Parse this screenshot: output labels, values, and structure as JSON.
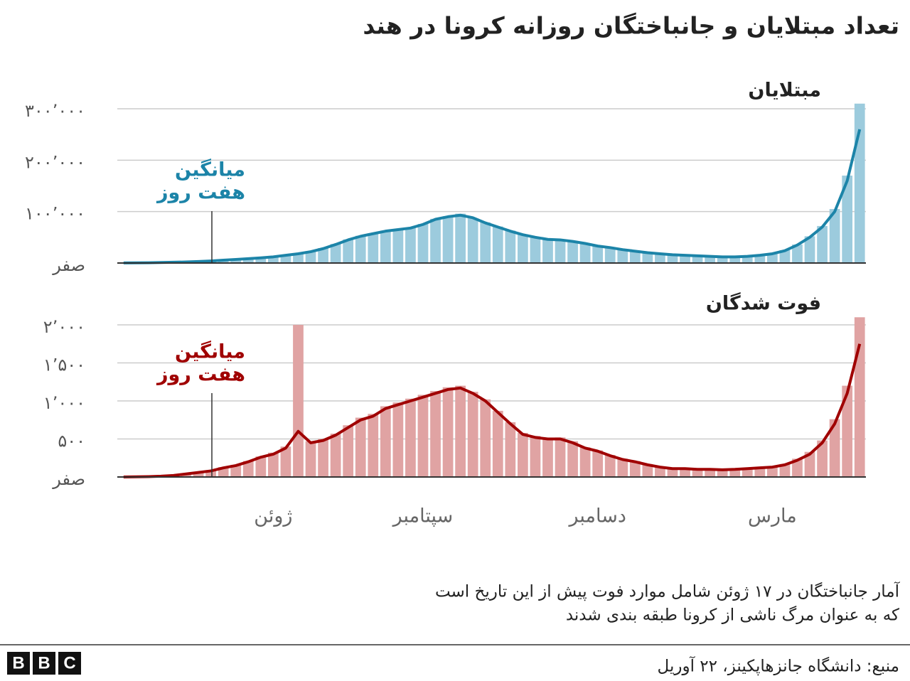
{
  "title": "تعداد مبتلایان و جانباختگان روزانه کرونا در هند",
  "footnote": [
    "آمار جانباختگان  در ۱۷ ژوئن شامل موارد فوت پیش از این تاریخ است",
    "که به عنوان مرگ ناشی از کرونا طبقه بندی شدند"
  ],
  "source": "منبع: دانشگاه جانزهاپکینز،  ۲۲ آوریل",
  "logo": [
    "B",
    "B",
    "C"
  ],
  "chart_data": [
    {
      "type": "bar",
      "title": "مبتلایان",
      "grid": true,
      "annotation": {
        "lines": [
          "میانگین",
          "هفت روز"
        ],
        "color": "#1c84a8"
      },
      "ylim": [
        0,
        300000
      ],
      "yticks": [
        {
          "value": 0,
          "label": "صفر"
        },
        {
          "value": 100000,
          "label": "۱۰۰٬۰۰۰"
        },
        {
          "value": 200000,
          "label": "۲۰۰٬۰۰۰"
        },
        {
          "value": 300000,
          "label": "۳۰۰٬۰۰۰"
        }
      ],
      "series": [
        {
          "type": "bar",
          "color": "#9ccbdd",
          "values": [
            120,
            350,
            650,
            1100,
            1600,
            2200,
            3200,
            4300,
            5800,
            7400,
            9000,
            10500,
            12600,
            15500,
            18800,
            23000,
            29000,
            37000,
            46000,
            53000,
            58000,
            63000,
            66000,
            69000,
            76000,
            86000,
            91000,
            96000,
            87000,
            79000,
            71000,
            63000,
            56000,
            50000,
            47000,
            45500,
            43000,
            38000,
            33500,
            30000,
            26500,
            23000,
            20500,
            18000,
            16500,
            15000,
            14500,
            13500,
            12500,
            12000,
            13500,
            15500,
            18500,
            25000,
            36000,
            52000,
            72000,
            105000,
            170000,
            310000
          ]
        },
        {
          "type": "line",
          "color": "#1c84a8",
          "values": [
            100,
            300,
            600,
            1000,
            1500,
            2000,
            3000,
            4000,
            5500,
            7000,
            8500,
            10000,
            12000,
            15000,
            18000,
            22000,
            28000,
            36000,
            45000,
            52000,
            57000,
            62000,
            65000,
            68000,
            75000,
            85000,
            90000,
            93000,
            88000,
            78000,
            70000,
            62000,
            55000,
            50000,
            46000,
            45000,
            42000,
            38000,
            33000,
            30000,
            26000,
            23000,
            20000,
            18000,
            16000,
            15000,
            14000,
            13000,
            12000,
            12000,
            13000,
            15000,
            18000,
            24000,
            35000,
            50000,
            70000,
            100000,
            160000,
            260000
          ]
        }
      ]
    },
    {
      "type": "bar",
      "title": "فوت شدگان",
      "grid": true,
      "annotation": {
        "lines": [
          "میانگین",
          "هفت روز"
        ],
        "color": "#a00000"
      },
      "ylim": [
        0,
        2000
      ],
      "yticks": [
        {
          "value": 0,
          "label": "صفر"
        },
        {
          "value": 500,
          "label": "۵۰۰"
        },
        {
          "value": 1000,
          "label": "۱٬۰۰۰"
        },
        {
          "value": 1500,
          "label": "۱٬۵۰۰"
        },
        {
          "value": 2000,
          "label": "۲٬۰۰۰"
        }
      ],
      "categories": [
        null,
        null,
        null,
        null,
        null,
        null,
        null,
        null,
        null,
        null,
        null,
        null,
        "ژوئن",
        null,
        null,
        null,
        null,
        null,
        null,
        null,
        null,
        null,
        null,
        null,
        "سپتامبر",
        null,
        null,
        null,
        null,
        null,
        null,
        null,
        null,
        null,
        null,
        null,
        null,
        null,
        "دسامبر",
        null,
        null,
        null,
        null,
        null,
        null,
        null,
        null,
        null,
        null,
        null,
        null,
        null,
        "مارس",
        null,
        null,
        null,
        null,
        null,
        null,
        null
      ],
      "series": [
        {
          "type": "bar",
          "color": "#e0a3a3",
          "values": [
            0,
            3,
            6,
            12,
            25,
            45,
            65,
            90,
            130,
            160,
            210,
            270,
            320,
            400,
            2000,
            470,
            500,
            570,
            680,
            780,
            830,
            930,
            980,
            1030,
            1080,
            1130,
            1180,
            1200,
            1120,
            1020,
            870,
            720,
            580,
            540,
            510,
            520,
            470,
            390,
            350,
            290,
            240,
            210,
            170,
            140,
            120,
            115,
            105,
            100,
            100,
            105,
            115,
            125,
            140,
            170,
            240,
            330,
            480,
            760,
            1200,
            2100
          ]
        },
        {
          "type": "line",
          "color": "#a00000",
          "values": [
            0,
            2,
            5,
            10,
            20,
            40,
            60,
            80,
            120,
            150,
            200,
            260,
            300,
            380,
            600,
            450,
            480,
            550,
            650,
            750,
            800,
            900,
            950,
            1000,
            1050,
            1100,
            1150,
            1170,
            1100,
            1000,
            850,
            700,
            560,
            520,
            500,
            500,
            450,
            380,
            340,
            280,
            230,
            200,
            160,
            130,
            110,
            110,
            100,
            100,
            95,
            100,
            110,
            120,
            130,
            160,
            220,
            300,
            450,
            700,
            1100,
            1750
          ]
        }
      ]
    }
  ]
}
